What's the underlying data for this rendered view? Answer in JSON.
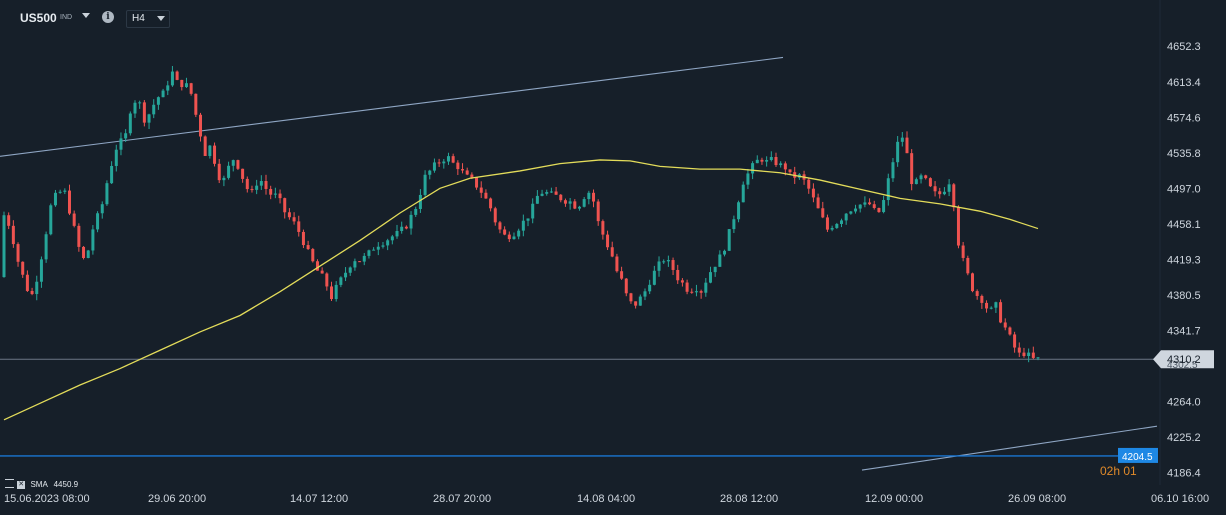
{
  "header": {
    "symbol": "US500",
    "symbol_type": "IND",
    "timeframe": "H4"
  },
  "indicator": {
    "name": "SMA",
    "value": "4450.9"
  },
  "price_labels": {
    "current": "4310.2",
    "current_hidden": "4302.5",
    "blue_line": "4204.5",
    "countdown": "02h 01"
  },
  "colors": {
    "background": "#161f29",
    "bull": "#26a69a",
    "bear": "#ef5350",
    "sma": "#e3dc5a",
    "trendline": "#8fa6c4",
    "blue_line": "#1976d2",
    "current_price_line": "#6b7785"
  },
  "chart_data": {
    "type": "candlestick",
    "x_ticks": [
      "15.06.2023  08:00",
      "29.06  20:00",
      "14.07  12:00",
      "28.07  20:00",
      "14.08  04:00",
      "28.08  12:00",
      "12.09  00:00",
      "26.09  08:00",
      "06.10  16:00"
    ],
    "y_ticks": [
      4652.3,
      4613.4,
      4574.6,
      4535.8,
      4497.0,
      4458.1,
      4419.3,
      4380.5,
      4341.7,
      4264.0,
      4225.2,
      4186.4
    ],
    "ylim": [
      4183,
      4665
    ],
    "n_candles": 222,
    "price_path": [
      [
        0,
        4400
      ],
      [
        5,
        4475
      ],
      [
        15,
        4455
      ],
      [
        22,
        4420
      ],
      [
        30,
        4392
      ],
      [
        36,
        4378
      ],
      [
        43,
        4405
      ],
      [
        50,
        4445
      ],
      [
        56,
        4480
      ],
      [
        63,
        4493
      ],
      [
        70,
        4492
      ],
      [
        76,
        4465
      ],
      [
        84,
        4430
      ],
      [
        90,
        4415
      ],
      [
        98,
        4455
      ],
      [
        106,
        4475
      ],
      [
        112,
        4505
      ],
      [
        120,
        4540
      ],
      [
        130,
        4553
      ],
      [
        137,
        4595
      ],
      [
        144,
        4590
      ],
      [
        150,
        4570
      ],
      [
        158,
        4588
      ],
      [
        166,
        4602
      ],
      [
        170,
        4598
      ],
      [
        175,
        4628
      ],
      [
        182,
        4612
      ],
      [
        190,
        4611
      ],
      [
        196,
        4600
      ],
      [
        202,
        4570
      ],
      [
        210,
        4535
      ],
      [
        216,
        4545
      ],
      [
        222,
        4512
      ],
      [
        230,
        4505
      ],
      [
        236,
        4532
      ],
      [
        244,
        4520
      ],
      [
        250,
        4500
      ],
      [
        256,
        4490
      ],
      [
        262,
        4505
      ],
      [
        266,
        4505
      ],
      [
        268,
        4500
      ],
      [
        276,
        4490
      ],
      [
        282,
        4488
      ],
      [
        290,
        4470
      ],
      [
        298,
        4460
      ],
      [
        306,
        4445
      ],
      [
        312,
        4428
      ],
      [
        320,
        4410
      ],
      [
        330,
        4395
      ],
      [
        336,
        4378
      ],
      [
        342,
        4390
      ],
      [
        350,
        4405
      ],
      [
        358,
        4420
      ],
      [
        366,
        4418
      ],
      [
        374,
        4426
      ],
      [
        380,
        4435
      ],
      [
        390,
        4440
      ],
      [
        396,
        4444
      ],
      [
        404,
        4448
      ],
      [
        412,
        4458
      ],
      [
        420,
        4475
      ],
      [
        430,
        4510
      ],
      [
        438,
        4520
      ],
      [
        446,
        4528
      ],
      [
        452,
        4532
      ],
      [
        456,
        4525
      ],
      [
        462,
        4522
      ],
      [
        470,
        4510
      ],
      [
        476,
        4506
      ],
      [
        484,
        4497
      ],
      [
        490,
        4486
      ],
      [
        496,
        4474
      ],
      [
        502,
        4455
      ],
      [
        510,
        4444
      ],
      [
        518,
        4448
      ],
      [
        528,
        4460
      ],
      [
        536,
        4472
      ],
      [
        542,
        4488
      ],
      [
        548,
        4494
      ],
      [
        554,
        4490
      ],
      [
        562,
        4488
      ],
      [
        568,
        4485
      ],
      [
        576,
        4482
      ],
      [
        582,
        4476
      ],
      [
        589,
        4489
      ],
      [
        596,
        4495
      ],
      [
        602,
        4462
      ],
      [
        610,
        4440
      ],
      [
        616,
        4426
      ],
      [
        622,
        4405
      ],
      [
        628,
        4392
      ],
      [
        632,
        4376
      ],
      [
        638,
        4368
      ],
      [
        644,
        4375
      ],
      [
        650,
        4385
      ],
      [
        656,
        4400
      ],
      [
        662,
        4410
      ],
      [
        668,
        4420
      ],
      [
        676,
        4412
      ],
      [
        682,
        4400
      ],
      [
        688,
        4392
      ],
      [
        694,
        4385
      ],
      [
        700,
        4390
      ],
      [
        706,
        4385
      ],
      [
        712,
        4400
      ],
      [
        718,
        4412
      ],
      [
        724,
        4420
      ],
      [
        730,
        4435
      ],
      [
        736,
        4455
      ],
      [
        742,
        4480
      ],
      [
        748,
        4505
      ],
      [
        754,
        4515
      ],
      [
        760,
        4525
      ],
      [
        766,
        4530
      ],
      [
        772,
        4525
      ],
      [
        778,
        4528
      ],
      [
        784,
        4522
      ],
      [
        790,
        4520
      ],
      [
        796,
        4508
      ],
      [
        802,
        4512
      ],
      [
        808,
        4506
      ],
      [
        814,
        4495
      ],
      [
        820,
        4480
      ],
      [
        826,
        4466
      ],
      [
        832,
        4452
      ],
      [
        838,
        4458
      ],
      [
        844,
        4462
      ],
      [
        850,
        4470
      ],
      [
        856,
        4475
      ],
      [
        862,
        4480
      ],
      [
        868,
        4478
      ],
      [
        874,
        4480
      ],
      [
        880,
        4470
      ],
      [
        886,
        4472
      ],
      [
        896,
        4520
      ],
      [
        902,
        4545
      ],
      [
        908,
        4555
      ],
      [
        914,
        4520
      ],
      [
        918,
        4495
      ],
      [
        924,
        4510
      ],
      [
        930,
        4505
      ],
      [
        936,
        4495
      ],
      [
        942,
        4488
      ],
      [
        948,
        4495
      ],
      [
        954,
        4505
      ],
      [
        958,
        4485
      ],
      [
        964,
        4430
      ],
      [
        970,
        4410
      ],
      [
        976,
        4390
      ],
      [
        982,
        4380
      ],
      [
        988,
        4375
      ],
      [
        994,
        4360
      ],
      [
        1000,
        4370
      ],
      [
        1006,
        4352
      ],
      [
        1012,
        4340
      ],
      [
        1018,
        4325
      ],
      [
        1024,
        4315
      ],
      [
        1030,
        4318
      ],
      [
        1036,
        4310
      ]
    ],
    "sma_path": [
      [
        4,
        4244
      ],
      [
        40,
        4262
      ],
      [
        80,
        4282
      ],
      [
        120,
        4300
      ],
      [
        160,
        4320
      ],
      [
        200,
        4340
      ],
      [
        240,
        4358
      ],
      [
        280,
        4384
      ],
      [
        320,
        4412
      ],
      [
        360,
        4440
      ],
      [
        400,
        4470
      ],
      [
        440,
        4497
      ],
      [
        470,
        4508
      ],
      [
        520,
        4516
      ],
      [
        560,
        4524
      ],
      [
        600,
        4528
      ],
      [
        630,
        4527
      ],
      [
        660,
        4521
      ],
      [
        700,
        4518
      ],
      [
        740,
        4518
      ],
      [
        780,
        4514
      ],
      [
        820,
        4506
      ],
      [
        860,
        4496
      ],
      [
        900,
        4486
      ],
      [
        940,
        4480
      ],
      [
        980,
        4472
      ],
      [
        1010,
        4463
      ],
      [
        1038,
        4453
      ]
    ],
    "trendlines": [
      [
        [
          0,
          4532
        ],
        [
          783,
          4640
        ]
      ],
      [
        [
          862,
          4189
        ],
        [
          1157,
          4237
        ]
      ]
    ],
    "horizontal_lines": [
      4310.2,
      4204.5
    ]
  }
}
